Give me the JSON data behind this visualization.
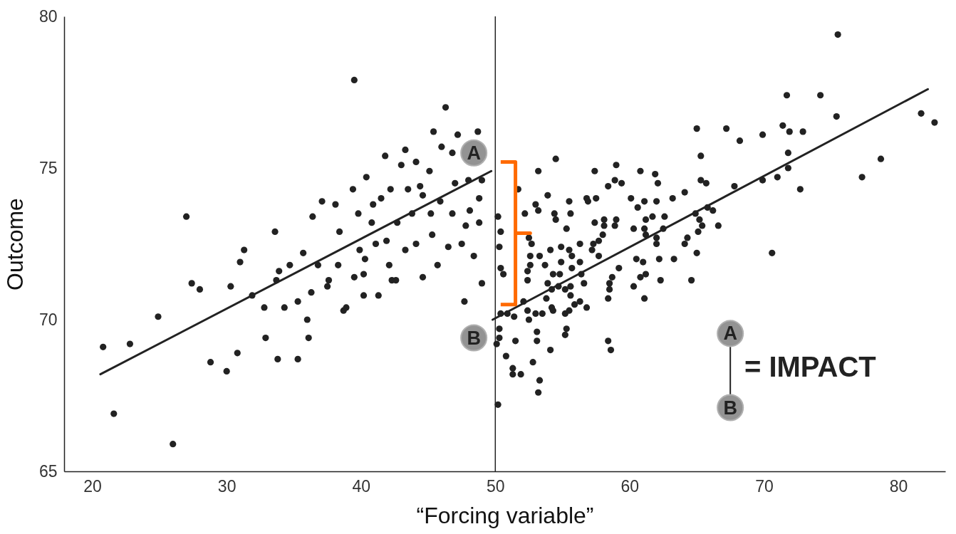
{
  "chart_data": {
    "type": "scatter",
    "xlabel": "“Forcing variable”",
    "ylabel": "Outcome",
    "xlim": [
      17.9,
      83.5
    ],
    "ylim": [
      65,
      80
    ],
    "xticks": [
      20,
      30,
      40,
      50,
      60,
      70,
      80
    ],
    "yticks": [
      65,
      70,
      75,
      80
    ],
    "grid": false,
    "marker": "circle",
    "ref_lines": [
      {
        "axis": "x",
        "value": 50,
        "color": "#222222"
      }
    ],
    "annotations": [
      {
        "text": "A",
        "x": 48.4,
        "y": 75.5
      },
      {
        "text": "B",
        "x": 48.4,
        "y": 69.4
      },
      "A",
      "B",
      "= IMPACT"
    ],
    "series": [
      {
        "color": "#222222",
        "x": [
          20.8,
          21.6,
          22.8,
          24.9,
          26.0,
          27.0,
          27.4,
          28.0,
          28.8,
          30.0,
          30.3,
          30.8,
          31.0,
          31.3,
          31.9,
          32.8,
          32.9,
          33.6,
          33.7,
          33.8,
          33.9,
          34.3,
          34.7,
          35.3,
          35.3,
          35.7,
          36.0,
          36.1,
          36.4,
          36.8,
          37.1,
          37.5,
          38.1,
          38.3,
          38.4,
          38.7,
          38.9,
          39.4,
          39.5,
          39.5,
          39.8,
          39.9,
          40.2,
          40.2,
          40.4,
          40.8,
          40.9,
          41.3,
          41.5,
          41.8,
          42.1,
          42.2,
          42.3,
          42.6,
          42.7,
          43.0,
          43.3,
          43.5,
          43.8,
          44.1,
          44.4,
          44.6,
          45.1,
          45.3,
          45.4,
          45.7,
          45.9,
          46.0,
          46.3,
          46.5,
          46.8,
          47.0,
          47.2,
          47.5,
          47.7,
          48.0,
          48.1,
          48.4,
          48.7,
          48.8,
          49.0,
          49.0,
          48.8,
          47.8,
          45.2,
          41.9,
          41.1,
          37.6,
          36.3,
          40.3,
          44.6,
          43.3,
          46.8,
          44.1
        ],
        "values": [
          69.1,
          66.9,
          69.2,
          70.1,
          65.9,
          73.4,
          71.2,
          71.0,
          68.6,
          68.3,
          71.1,
          68.9,
          71.9,
          72.3,
          70.8,
          70.4,
          69.4,
          72.9,
          71.3,
          68.7,
          71.6,
          70.4,
          71.8,
          68.7,
          70.6,
          72.2,
          70.0,
          69.4,
          73.4,
          71.8,
          73.9,
          71.1,
          73.8,
          71.8,
          72.9,
          70.3,
          70.4,
          74.3,
          71.4,
          77.9,
          73.5,
          72.3,
          71.5,
          70.8,
          74.7,
          73.2,
          73.8,
          70.8,
          74.0,
          75.4,
          71.8,
          74.3,
          71.3,
          71.3,
          73.2,
          75.1,
          72.3,
          74.3,
          73.5,
          75.2,
          74.4,
          71.4,
          74.9,
          72.8,
          76.2,
          71.8,
          73.9,
          75.7,
          77.0,
          72.4,
          73.5,
          74.5,
          76.1,
          72.5,
          70.6,
          74.6,
          73.6,
          72.1,
          76.2,
          73.2,
          71.2,
          74.6,
          74.0,
          73.1,
          73.5,
          72.6,
          72.5,
          71.3,
          70.9,
          72.0,
          74.1,
          75.6,
          75.5,
          72.5
        ]
      },
      {
        "color": "#222222",
        "x": [
          75.5,
          71.7,
          74.2,
          75.4,
          81.7,
          82.7,
          78.7,
          77.3,
          72.7,
          72.9,
          71.9,
          71.4,
          71.8,
          71.8,
          71.0,
          69.9,
          69.9,
          68.2,
          67.2,
          65.0,
          65.3,
          65.3,
          65.7,
          67.8,
          70.6,
          64.1,
          63.2,
          65.8,
          66.2,
          64.9,
          65.2,
          65.4,
          66.6,
          65.1,
          64.3,
          64.1,
          65.0,
          64.6,
          63.3,
          62.2,
          62.3,
          62.6,
          62.0,
          61.7,
          62.0,
          62.0,
          62.5,
          61.2,
          61.1,
          61.2,
          60.3,
          60.1,
          60.6,
          61.1,
          60.8,
          61.9,
          62.1,
          59.0,
          58.9,
          59.4,
          58.4,
          57.4,
          57.5,
          56.8,
          56.9,
          55.5,
          55.6,
          57.4,
          58.1,
          59.0,
          58.9,
          58.1,
          58.0,
          57.7,
          57.3,
          57.2,
          57.7,
          56.3,
          55.3,
          54.5,
          54.4,
          53.2,
          53.0,
          52.2,
          53.9,
          53.2,
          54.5,
          51.7,
          50.2,
          50.4,
          50.3,
          50.4,
          50.6,
          52.5,
          52.7,
          52.6,
          53.3,
          54.1,
          54.9,
          55.5,
          55.7,
          54.9,
          53.7,
          52.6,
          52.4,
          52.4,
          54.3,
          54.8,
          55.7,
          56.3,
          56.4,
          56.6,
          53.9,
          54.2,
          54.7,
          55.2,
          55.6,
          55.6,
          53.8,
          54.2,
          54.3,
          52.1,
          52.4,
          52.5,
          53.0,
          53.5,
          55.2,
          55.5,
          55.9,
          56.3,
          56.8,
          58.5,
          58.7,
          59.2,
          58.5,
          58.4,
          60.3,
          60.8,
          61.2,
          60.5,
          61.0,
          61.1,
          50.4,
          50.9,
          51.4,
          50.3,
          50.1,
          50.3,
          51.5,
          53.1,
          53.1,
          55.3,
          55.2,
          54.1,
          50.8,
          52.8,
          51.3,
          51.3,
          51.9,
          53.3,
          53.2,
          50.2,
          58.4,
          58.6
        ],
        "values": [
          79.4,
          77.4,
          77.4,
          76.7,
          76.8,
          76.5,
          75.3,
          74.7,
          74.3,
          76.2,
          76.2,
          76.4,
          75.5,
          75.0,
          74.7,
          74.6,
          76.1,
          75.9,
          76.3,
          76.3,
          75.4,
          74.6,
          74.5,
          74.4,
          72.2,
          74.2,
          74.0,
          73.7,
          73.6,
          73.5,
          73.3,
          73.1,
          73.1,
          72.9,
          72.7,
          72.5,
          72.2,
          71.3,
          72.0,
          72.0,
          71.3,
          73.4,
          73.9,
          73.4,
          72.7,
          72.5,
          73.0,
          73.3,
          73.0,
          72.8,
          73.0,
          74.0,
          73.7,
          73.9,
          74.9,
          74.8,
          74.5,
          75.1,
          74.6,
          74.5,
          74.4,
          74.9,
          74.0,
          74.0,
          73.9,
          73.9,
          73.5,
          73.2,
          73.3,
          73.3,
          73.1,
          73.1,
          72.8,
          72.6,
          72.5,
          72.3,
          72.1,
          72.5,
          73.0,
          73.3,
          73.5,
          73.6,
          73.8,
          73.5,
          74.1,
          74.9,
          75.3,
          74.3,
          73.4,
          72.9,
          72.4,
          71.7,
          71.5,
          72.7,
          72.5,
          72.1,
          72.1,
          72.3,
          72.4,
          72.3,
          72.1,
          71.9,
          71.8,
          71.8,
          71.6,
          71.3,
          71.5,
          71.5,
          71.7,
          71.9,
          71.5,
          71.2,
          71.2,
          71.0,
          71.1,
          71.0,
          71.1,
          70.8,
          70.7,
          70.4,
          70.3,
          70.6,
          70.3,
          70.0,
          70.2,
          70.2,
          70.2,
          70.3,
          70.5,
          70.6,
          70.4,
          71.2,
          71.4,
          71.7,
          71.0,
          70.7,
          71.1,
          71.4,
          71.5,
          72.0,
          71.9,
          70.7,
          70.2,
          70.2,
          70.1,
          69.7,
          69.2,
          69.4,
          69.3,
          69.6,
          69.3,
          69.7,
          69.5,
          69.0,
          68.8,
          68.6,
          68.4,
          68.2,
          68.2,
          68.0,
          67.6,
          67.2,
          69.3,
          69.0
        ]
      },
      {
        "type": "line",
        "marker": "none",
        "color": "#222222",
        "x": [
          20.6,
          49.7
        ],
        "values": [
          68.2,
          74.9
        ]
      },
      {
        "type": "line",
        "marker": "none",
        "color": "#222222",
        "x": [
          49.8,
          82.2
        ],
        "values": [
          70.0,
          77.6
        ]
      }
    ]
  }
}
